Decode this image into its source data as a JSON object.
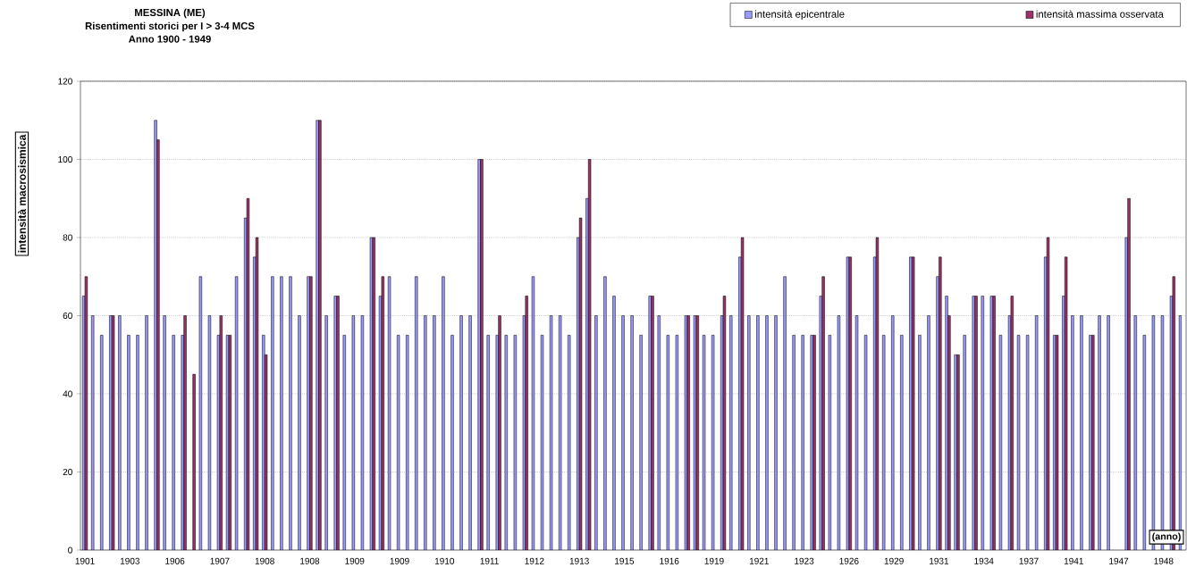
{
  "chart_data": {
    "type": "bar",
    "title": "MESSINA (ME)",
    "subtitle": "Risentimenti storici per I > 3-4 MCS",
    "annotations": [
      "Anno 1900 - 1949"
    ],
    "xlabel": "(anno)",
    "ylabel": "intensità macrosismica",
    "categories": [
      "1901",
      null,
      null,
      null,
      null,
      "1903",
      null,
      null,
      null,
      null,
      "1906",
      null,
      null,
      null,
      null,
      "1907",
      null,
      null,
      null,
      null,
      "1908",
      null,
      null,
      null,
      null,
      "1908",
      null,
      null,
      null,
      null,
      "1909",
      null,
      null,
      null,
      null,
      "1909",
      null,
      null,
      null,
      null,
      "1910",
      null,
      null,
      null,
      null,
      "1911",
      null,
      null,
      null,
      null,
      "1912",
      null,
      null,
      null,
      null,
      "1913",
      null,
      null,
      null,
      null,
      "1915",
      null,
      null,
      null,
      null,
      "1916",
      null,
      null,
      null,
      null,
      "1919",
      null,
      null,
      null,
      null,
      "1921",
      null,
      null,
      null,
      null,
      "1923",
      null,
      null,
      null,
      null,
      "1926",
      null,
      null,
      null,
      null,
      "1929",
      null,
      null,
      null,
      null,
      "1931",
      null,
      null,
      null,
      null,
      "1934",
      null,
      null,
      null,
      null,
      "1937",
      null,
      null,
      null,
      null,
      "1941",
      null,
      null,
      null,
      null,
      "1947",
      null,
      null,
      null,
      null,
      "1948",
      null,
      null
    ],
    "series": [
      {
        "name": "intensità epicentrale",
        "color": "#9999ff",
        "values": [
          65,
          60,
          55,
          60,
          60,
          55,
          55,
          60,
          110,
          60,
          55,
          55,
          null,
          70,
          60,
          55,
          55,
          70,
          85,
          75,
          55,
          70,
          70,
          70,
          60,
          70,
          110,
          60,
          65,
          55,
          60,
          60,
          80,
          65,
          70,
          55,
          55,
          70,
          60,
          60,
          70,
          55,
          60,
          60,
          100,
          55,
          55,
          55,
          55,
          60,
          70,
          55,
          60,
          60,
          55,
          80,
          90,
          60,
          70,
          65,
          60,
          60,
          55,
          65,
          60,
          55,
          55,
          60,
          60,
          55,
          55,
          60,
          60,
          75,
          60,
          60,
          60,
          60,
          70,
          55,
          55,
          55,
          65,
          55,
          60,
          75,
          60,
          55,
          75,
          55,
          60,
          55,
          75,
          55,
          60,
          70,
          65,
          50,
          55,
          65,
          65,
          65,
          55,
          60,
          55,
          55,
          60,
          75,
          55,
          65,
          60,
          60,
          55,
          60,
          60,
          null,
          80,
          60,
          55,
          60,
          60,
          65,
          60
        ]
      },
      {
        "name": "intensità massima osservata",
        "color": "#993366",
        "values": [
          70,
          null,
          null,
          60,
          null,
          null,
          null,
          null,
          105,
          null,
          null,
          60,
          45,
          null,
          null,
          60,
          55,
          null,
          90,
          80,
          50,
          null,
          null,
          null,
          null,
          70,
          110,
          null,
          65,
          null,
          null,
          null,
          80,
          70,
          null,
          null,
          null,
          null,
          null,
          null,
          null,
          null,
          null,
          null,
          100,
          null,
          60,
          null,
          null,
          65,
          null,
          null,
          null,
          null,
          null,
          85,
          100,
          null,
          null,
          null,
          null,
          null,
          null,
          65,
          null,
          null,
          null,
          60,
          60,
          null,
          null,
          65,
          null,
          80,
          null,
          null,
          null,
          null,
          null,
          null,
          null,
          55,
          70,
          null,
          null,
          75,
          null,
          null,
          80,
          null,
          null,
          null,
          75,
          null,
          null,
          75,
          60,
          50,
          null,
          65,
          null,
          65,
          null,
          65,
          null,
          null,
          null,
          80,
          55,
          75,
          null,
          null,
          55,
          null,
          null,
          null,
          90,
          null,
          null,
          null,
          null,
          70,
          null
        ]
      }
    ],
    "ylim": [
      0,
      120
    ],
    "yticks": [
      0,
      20,
      40,
      60,
      80,
      100,
      120
    ],
    "grid": "y",
    "legend": "top right"
  }
}
